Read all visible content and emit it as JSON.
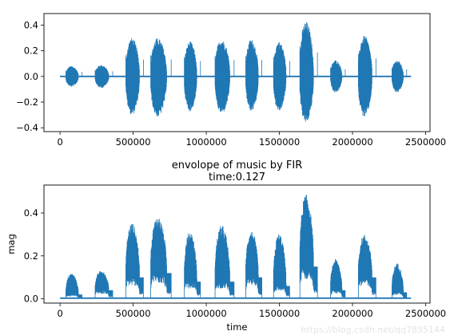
{
  "watermark": "https://blog.csdn.net/qq7835144",
  "chart_data": [
    {
      "type": "line",
      "title": "",
      "xlabel": "",
      "ylabel": "",
      "xlim": [
        -110000,
        2530000
      ],
      "ylim": [
        -0.43,
        0.49
      ],
      "xticks": [
        0,
        500000,
        1000000,
        1500000,
        2000000,
        2500000
      ],
      "xtick_labels": [
        "0",
        "500000",
        "1000000",
        "1500000",
        "2000000",
        "2500000"
      ],
      "yticks": [
        -0.4,
        -0.2,
        0.0,
        0.2,
        0.4
      ],
      "ytick_labels": [
        "−0.4",
        "−0.2",
        "0.0",
        "0.2",
        "0.4"
      ],
      "grid": false,
      "legend": "none",
      "series_color": "#1f77b4",
      "x_range": [
        0,
        2400000
      ],
      "baseline": 0.0,
      "bursts": [
        {
          "start": 40000,
          "end": 150000,
          "pos": 0.09,
          "neg": -0.09
        },
        {
          "start": 240000,
          "end": 360000,
          "pos": 0.1,
          "neg": -0.1
        },
        {
          "start": 450000,
          "end": 570000,
          "pos": 0.33,
          "neg": -0.33
        },
        {
          "start": 620000,
          "end": 760000,
          "pos": 0.33,
          "neg": -0.35
        },
        {
          "start": 850000,
          "end": 960000,
          "pos": 0.3,
          "neg": -0.3
        },
        {
          "start": 1060000,
          "end": 1190000,
          "pos": 0.32,
          "neg": -0.32
        },
        {
          "start": 1270000,
          "end": 1380000,
          "pos": 0.32,
          "neg": -0.3
        },
        {
          "start": 1460000,
          "end": 1570000,
          "pos": 0.3,
          "neg": -0.3
        },
        {
          "start": 1640000,
          "end": 1760000,
          "pos": 0.47,
          "neg": -0.4
        },
        {
          "start": 1850000,
          "end": 1950000,
          "pos": 0.14,
          "neg": -0.14
        },
        {
          "start": 2040000,
          "end": 2160000,
          "pos": 0.35,
          "neg": -0.35
        },
        {
          "start": 2270000,
          "end": 2370000,
          "pos": 0.14,
          "neg": -0.14
        }
      ]
    },
    {
      "type": "line",
      "title": "envolope of music by FIR\ntime:0.127",
      "title_line1": "envolope of music by FIR",
      "title_line2": "time:0.127",
      "xlabel": "time",
      "ylabel": "mag",
      "xlim": [
        -110000,
        2530000
      ],
      "ylim": [
        -0.02,
        0.53
      ],
      "xticks": [
        0,
        500000,
        1000000,
        1500000,
        2000000,
        2500000
      ],
      "xtick_labels": [
        "0",
        "500000",
        "1000000",
        "1500000",
        "2000000",
        "2500000"
      ],
      "yticks": [
        0.0,
        0.2,
        0.4
      ],
      "ytick_labels": [
        "0.0",
        "0.2",
        "0.4"
      ],
      "grid": false,
      "legend": "none",
      "series_color": "#1f77b4",
      "x_range": [
        0,
        2400000
      ],
      "baseline": 0.003,
      "bursts": [
        {
          "start": 40000,
          "end": 150000,
          "low": 0.02,
          "high": 0.13
        },
        {
          "start": 240000,
          "end": 360000,
          "low": 0.04,
          "high": 0.14
        },
        {
          "start": 450000,
          "end": 570000,
          "low": 0.1,
          "high": 0.38
        },
        {
          "start": 620000,
          "end": 760000,
          "low": 0.12,
          "high": 0.41
        },
        {
          "start": 850000,
          "end": 960000,
          "low": 0.08,
          "high": 0.34
        },
        {
          "start": 1060000,
          "end": 1190000,
          "low": 0.08,
          "high": 0.37
        },
        {
          "start": 1270000,
          "end": 1380000,
          "low": 0.1,
          "high": 0.34
        },
        {
          "start": 1460000,
          "end": 1570000,
          "low": 0.06,
          "high": 0.33
        },
        {
          "start": 1640000,
          "end": 1760000,
          "low": 0.15,
          "high": 0.52
        },
        {
          "start": 1850000,
          "end": 1950000,
          "low": 0.04,
          "high": 0.2
        },
        {
          "start": 2040000,
          "end": 2160000,
          "low": 0.1,
          "high": 0.32
        },
        {
          "start": 2270000,
          "end": 2370000,
          "low": 0.03,
          "high": 0.18
        }
      ]
    }
  ]
}
